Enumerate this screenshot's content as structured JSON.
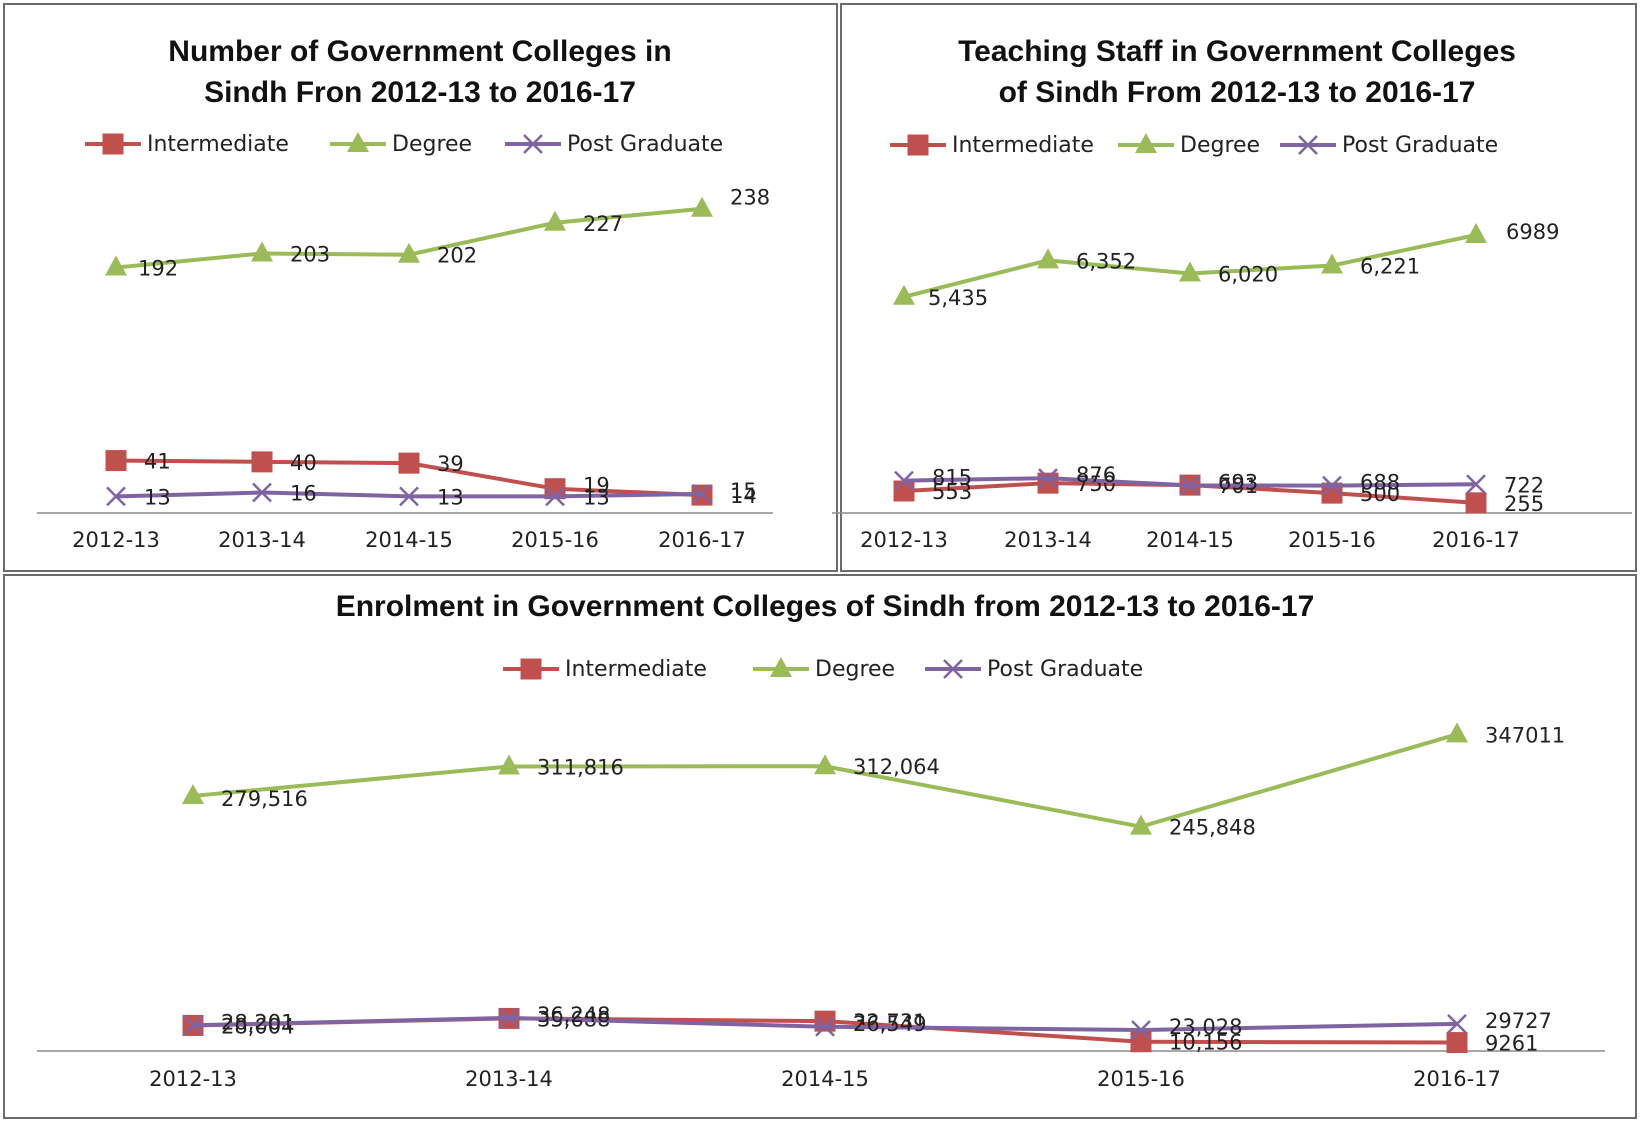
{
  "chart_data": [
    {
      "type": "line",
      "title": "Number of Government Colleges in Sindh Fron 2012-13 to 2016-17",
      "title_lines": [
        "Number of Government Colleges in",
        "Sindh Fron 2012-13 to 2016-17"
      ],
      "categories": [
        "2012-13",
        "2013-14",
        "2014-15",
        "2015-16",
        "2016-17"
      ],
      "series": [
        {
          "name": "Intermediate",
          "color": "#c0504d",
          "marker": "square",
          "values": [
            41,
            40,
            39,
            19,
            14
          ],
          "labels": [
            "41",
            "40",
            "39",
            "19",
            "14"
          ]
        },
        {
          "name": "Degree",
          "color": "#9bbb59",
          "marker": "triangle",
          "values": [
            192,
            203,
            202,
            227,
            238
          ],
          "labels": [
            "192",
            "203",
            "202",
            "227",
            "238"
          ]
        },
        {
          "name": "Post Graduate",
          "color": "#8064a2",
          "marker": "x",
          "values": [
            13,
            16,
            13,
            13,
            15
          ],
          "labels": [
            "13",
            "16",
            "13",
            "13",
            "15"
          ]
        }
      ],
      "ylim": [
        0,
        280
      ],
      "legend_position": "top",
      "grid": false,
      "xlabel": "",
      "ylabel": ""
    },
    {
      "type": "line",
      "title": "Teaching Staff in Government Colleges of Sindh From 2012-13 to 2016-17",
      "title_lines": [
        "Teaching Staff in Government Colleges",
        "of Sindh From 2012-13 to 2016-17"
      ],
      "categories": [
        "2012-13",
        "2013-14",
        "2014-15",
        "2015-16",
        "2016-17"
      ],
      "series": [
        {
          "name": "Intermediate",
          "color": "#c0504d",
          "marker": "square",
          "values": [
            553,
            750,
            701,
            500,
            255
          ],
          "labels": [
            "553",
            "750",
            "701",
            "500",
            "255"
          ]
        },
        {
          "name": "Degree",
          "color": "#9bbb59",
          "marker": "triangle",
          "values": [
            5435,
            6352,
            6020,
            6221,
            6989
          ],
          "labels": [
            "5,435",
            "6,352",
            "6,020",
            "6,221",
            "6989"
          ]
        },
        {
          "name": "Post Graduate",
          "color": "#8064a2",
          "marker": "x",
          "values": [
            815,
            876,
            693,
            688,
            722
          ],
          "labels": [
            "815",
            "876",
            "693",
            "688",
            "722"
          ]
        }
      ],
      "ylim": [
        0,
        9000
      ],
      "legend_position": "top",
      "grid": false,
      "xlabel": "",
      "ylabel": ""
    },
    {
      "type": "line",
      "title": "Enrolment in Government Colleges of Sindh from 2012-13 to 2016-17",
      "title_lines": [
        "Enrolment in Government Colleges of Sindh from 2012-13 to 2016-17"
      ],
      "categories": [
        "2012-13",
        "2013-14",
        "2014-15",
        "2015-16",
        "2016-17"
      ],
      "series": [
        {
          "name": "Intermediate",
          "color": "#c0504d",
          "marker": "square",
          "values": [
            28004,
            35688,
            32731,
            10156,
            9261
          ],
          "labels": [
            "28,004",
            "35,688",
            "32,731",
            "10,156",
            "9261"
          ]
        },
        {
          "name": "Degree",
          "color": "#9bbb59",
          "marker": "triangle",
          "values": [
            279516,
            311816,
            312064,
            245848,
            347011
          ],
          "labels": [
            "279,516",
            "311,816",
            "312,064",
            "245,848",
            "347011"
          ]
        },
        {
          "name": "Post Graduate",
          "color": "#8064a2",
          "marker": "x",
          "values": [
            28201,
            36248,
            26549,
            23028,
            29727
          ],
          "labels": [
            "28,201",
            "36,248",
            "26,549",
            "23,028",
            "29727"
          ]
        }
      ],
      "ylim": [
        0,
        400000
      ],
      "legend_position": "top",
      "grid": false,
      "xlabel": "",
      "ylabel": ""
    }
  ]
}
